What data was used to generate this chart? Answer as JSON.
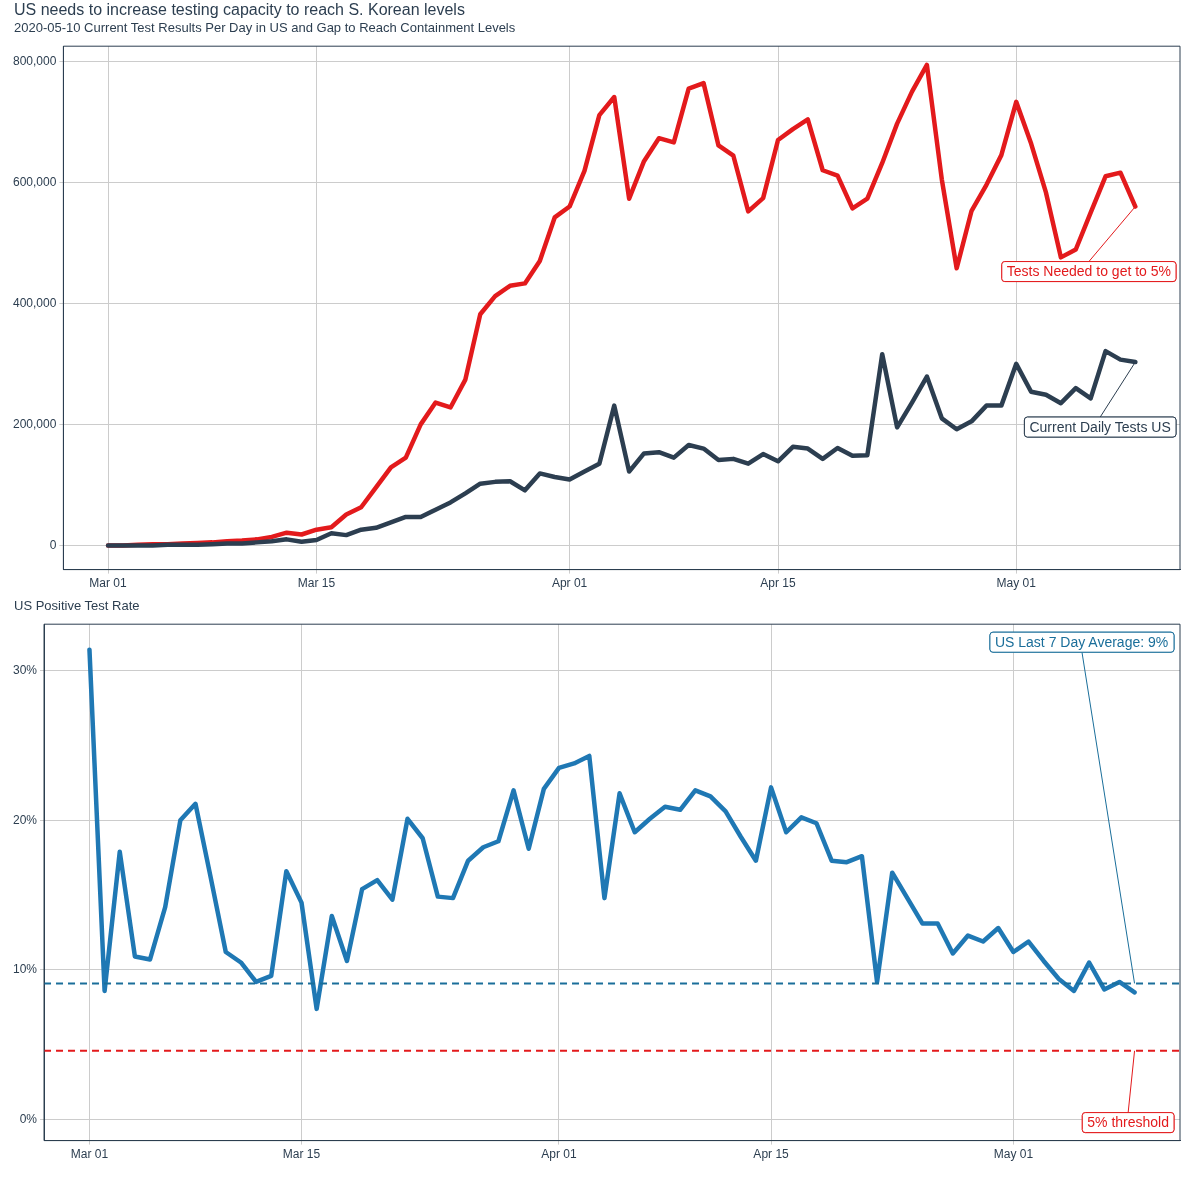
{
  "chart_data": [
    {
      "type": "line",
      "title": "US needs to increase testing capacity to reach S. Korean levels",
      "subtitle": "2020-05-10 Current Test Results Per Day in US and Gap to Reach Containment Levels",
      "x": [
        "2020-03-01",
        "2020-03-02",
        "2020-03-03",
        "2020-03-04",
        "2020-03-05",
        "2020-03-06",
        "2020-03-07",
        "2020-03-08",
        "2020-03-09",
        "2020-03-10",
        "2020-03-11",
        "2020-03-12",
        "2020-03-13",
        "2020-03-14",
        "2020-03-15",
        "2020-03-16",
        "2020-03-17",
        "2020-03-18",
        "2020-03-19",
        "2020-03-20",
        "2020-03-21",
        "2020-03-22",
        "2020-03-23",
        "2020-03-24",
        "2020-03-25",
        "2020-03-26",
        "2020-03-27",
        "2020-03-28",
        "2020-03-29",
        "2020-03-30",
        "2020-03-31",
        "2020-04-01",
        "2020-04-02",
        "2020-04-03",
        "2020-04-04",
        "2020-04-05",
        "2020-04-06",
        "2020-04-07",
        "2020-04-08",
        "2020-04-09",
        "2020-04-10",
        "2020-04-11",
        "2020-04-12",
        "2020-04-13",
        "2020-04-14",
        "2020-04-15",
        "2020-04-16",
        "2020-04-17",
        "2020-04-18",
        "2020-04-19",
        "2020-04-20",
        "2020-04-21",
        "2020-04-22",
        "2020-04-23",
        "2020-04-24",
        "2020-04-25",
        "2020-04-26",
        "2020-04-27",
        "2020-04-28",
        "2020-04-29",
        "2020-04-30",
        "2020-05-01",
        "2020-05-02",
        "2020-05-03",
        "2020-05-04",
        "2020-05-05",
        "2020-05-06",
        "2020-05-07",
        "2020-05-08",
        "2020-05-09"
      ],
      "series": [
        {
          "name": "Tests Needed to get to 5%",
          "color": "#e31a1c",
          "values": [
            0,
            0,
            1000,
            2000,
            2000,
            3000,
            4000,
            5000,
            7000,
            8000,
            10000,
            14000,
            21000,
            18000,
            26000,
            30000,
            51000,
            63000,
            96000,
            129000,
            145000,
            200000,
            236000,
            228000,
            274000,
            382000,
            412000,
            429000,
            433000,
            470000,
            542000,
            560000,
            619000,
            711000,
            741000,
            573000,
            635000,
            673000,
            666000,
            755000,
            764000,
            661000,
            644000,
            552000,
            574000,
            670000,
            688000,
            704000,
            620000,
            611000,
            557000,
            573000,
            632000,
            697000,
            750000,
            794000,
            605000,
            458000,
            553000,
            596000,
            645000,
            733000,
            664000,
            583000,
            476000,
            489000,
            550000,
            610000,
            616000,
            560000
          ]
        },
        {
          "name": "Current Daily Tests US",
          "color": "#2c3e50",
          "values": [
            0,
            0,
            0,
            0,
            1000,
            1000,
            1000,
            2000,
            3000,
            3000,
            5000,
            7000,
            10000,
            6000,
            9000,
            20000,
            17000,
            26000,
            29000,
            38000,
            47000,
            47000,
            59000,
            71000,
            86000,
            102000,
            105000,
            106000,
            91000,
            119000,
            113000,
            109000,
            122000,
            135000,
            231000,
            122000,
            152000,
            154000,
            145000,
            166000,
            160000,
            141000,
            143000,
            135000,
            151000,
            139000,
            163000,
            160000,
            143000,
            161000,
            148000,
            149000,
            316000,
            195000,
            236000,
            279000,
            210000,
            192000,
            205000,
            231000,
            231000,
            300000,
            254000,
            249000,
            235000,
            260000,
            243000,
            321000,
            307000,
            303000
          ]
        }
      ],
      "xlim": [
        "2020-02-27",
        "2020-05-12"
      ],
      "xticks": [
        {
          "value": "2020-03-01",
          "label": "Mar 01"
        },
        {
          "value": "2020-03-15",
          "label": "Mar 15"
        },
        {
          "value": "2020-04-01",
          "label": "Apr 01"
        },
        {
          "value": "2020-04-15",
          "label": "Apr 15"
        },
        {
          "value": "2020-05-01",
          "label": "May 01"
        }
      ],
      "ylim": [
        -40000,
        825000
      ],
      "yticks": [
        {
          "value": 0,
          "label": "0"
        },
        {
          "value": 200000,
          "label": "200,000"
        },
        {
          "value": 400000,
          "label": "400,000"
        },
        {
          "value": 600000,
          "label": "600,000"
        },
        {
          "value": 800000,
          "label": "800,000"
        }
      ],
      "grid": true
    },
    {
      "type": "line",
      "title": "US Positive Test Rate",
      "x": [
        "2020-03-01",
        "2020-03-02",
        "2020-03-03",
        "2020-03-04",
        "2020-03-05",
        "2020-03-06",
        "2020-03-07",
        "2020-03-08",
        "2020-03-09",
        "2020-03-10",
        "2020-03-11",
        "2020-03-12",
        "2020-03-13",
        "2020-03-14",
        "2020-03-15",
        "2020-03-16",
        "2020-03-17",
        "2020-03-18",
        "2020-03-19",
        "2020-03-20",
        "2020-03-21",
        "2020-03-22",
        "2020-03-23",
        "2020-03-24",
        "2020-03-25",
        "2020-03-26",
        "2020-03-27",
        "2020-03-28",
        "2020-03-29",
        "2020-03-30",
        "2020-03-31",
        "2020-04-01",
        "2020-04-02",
        "2020-04-03",
        "2020-04-04",
        "2020-04-05",
        "2020-04-06",
        "2020-04-07",
        "2020-04-08",
        "2020-04-09",
        "2020-04-10",
        "2020-04-11",
        "2020-04-12",
        "2020-04-13",
        "2020-04-14",
        "2020-04-15",
        "2020-04-16",
        "2020-04-17",
        "2020-04-18",
        "2020-04-19",
        "2020-04-20",
        "2020-04-21",
        "2020-04-22",
        "2020-04-23",
        "2020-04-24",
        "2020-04-25",
        "2020-04-26",
        "2020-04-27",
        "2020-04-28",
        "2020-04-29",
        "2020-04-30",
        "2020-05-01",
        "2020-05-02",
        "2020-05-03",
        "2020-05-04",
        "2020-05-05",
        "2020-05-06",
        "2020-05-07",
        "2020-05-08",
        "2020-05-09"
      ],
      "series": [
        {
          "color": "#1f78b4",
          "values": [
            31.4,
            8.6,
            17.9,
            10.9,
            10.7,
            14.2,
            20.0,
            21.1,
            16.2,
            11.2,
            10.5,
            9.2,
            9.6,
            16.6,
            14.5,
            7.4,
            13.6,
            10.6,
            15.4,
            16.0,
            14.7,
            20.1,
            18.8,
            14.9,
            14.8,
            17.3,
            18.2,
            18.6,
            22.0,
            18.1,
            22.1,
            23.5,
            23.8,
            24.3,
            14.8,
            21.8,
            19.2,
            20.1,
            20.9,
            20.7,
            22.0,
            21.6,
            20.6,
            18.9,
            17.3,
            22.2,
            19.2,
            20.2,
            19.8,
            17.3,
            17.2,
            17.6,
            9.2,
            16.5,
            14.8,
            13.1,
            13.1,
            11.1,
            12.3,
            11.9,
            12.8,
            11.2,
            11.9,
            10.6,
            9.4,
            8.6,
            10.5,
            8.7,
            9.2,
            8.5
          ]
        }
      ],
      "xlim": [
        "2020-02-27",
        "2020-05-12"
      ],
      "xticks": [
        {
          "value": "2020-03-01",
          "label": "Mar 01"
        },
        {
          "value": "2020-03-15",
          "label": "Mar 15"
        },
        {
          "value": "2020-04-01",
          "label": "Apr 01"
        },
        {
          "value": "2020-04-15",
          "label": "Apr 15"
        },
        {
          "value": "2020-05-01",
          "label": "May 01"
        }
      ],
      "ylim": [
        -1.4,
        33.1
      ],
      "yticks": [
        {
          "value": 0,
          "label": "0%"
        },
        {
          "value": 10,
          "label": "10%"
        },
        {
          "value": 20,
          "label": "20%"
        },
        {
          "value": 30,
          "label": "30%"
        }
      ],
      "ref_lines": [
        {
          "axis": "y",
          "value": 9.1,
          "label": "US Last 7 Day Average: 9%",
          "color": "#1a6e9a",
          "line_style": "dashed"
        },
        {
          "axis": "y",
          "value": 4.6,
          "label": "5% threshold",
          "color": "#e31a1c",
          "line_style": "dashed"
        }
      ],
      "grid": true
    }
  ]
}
